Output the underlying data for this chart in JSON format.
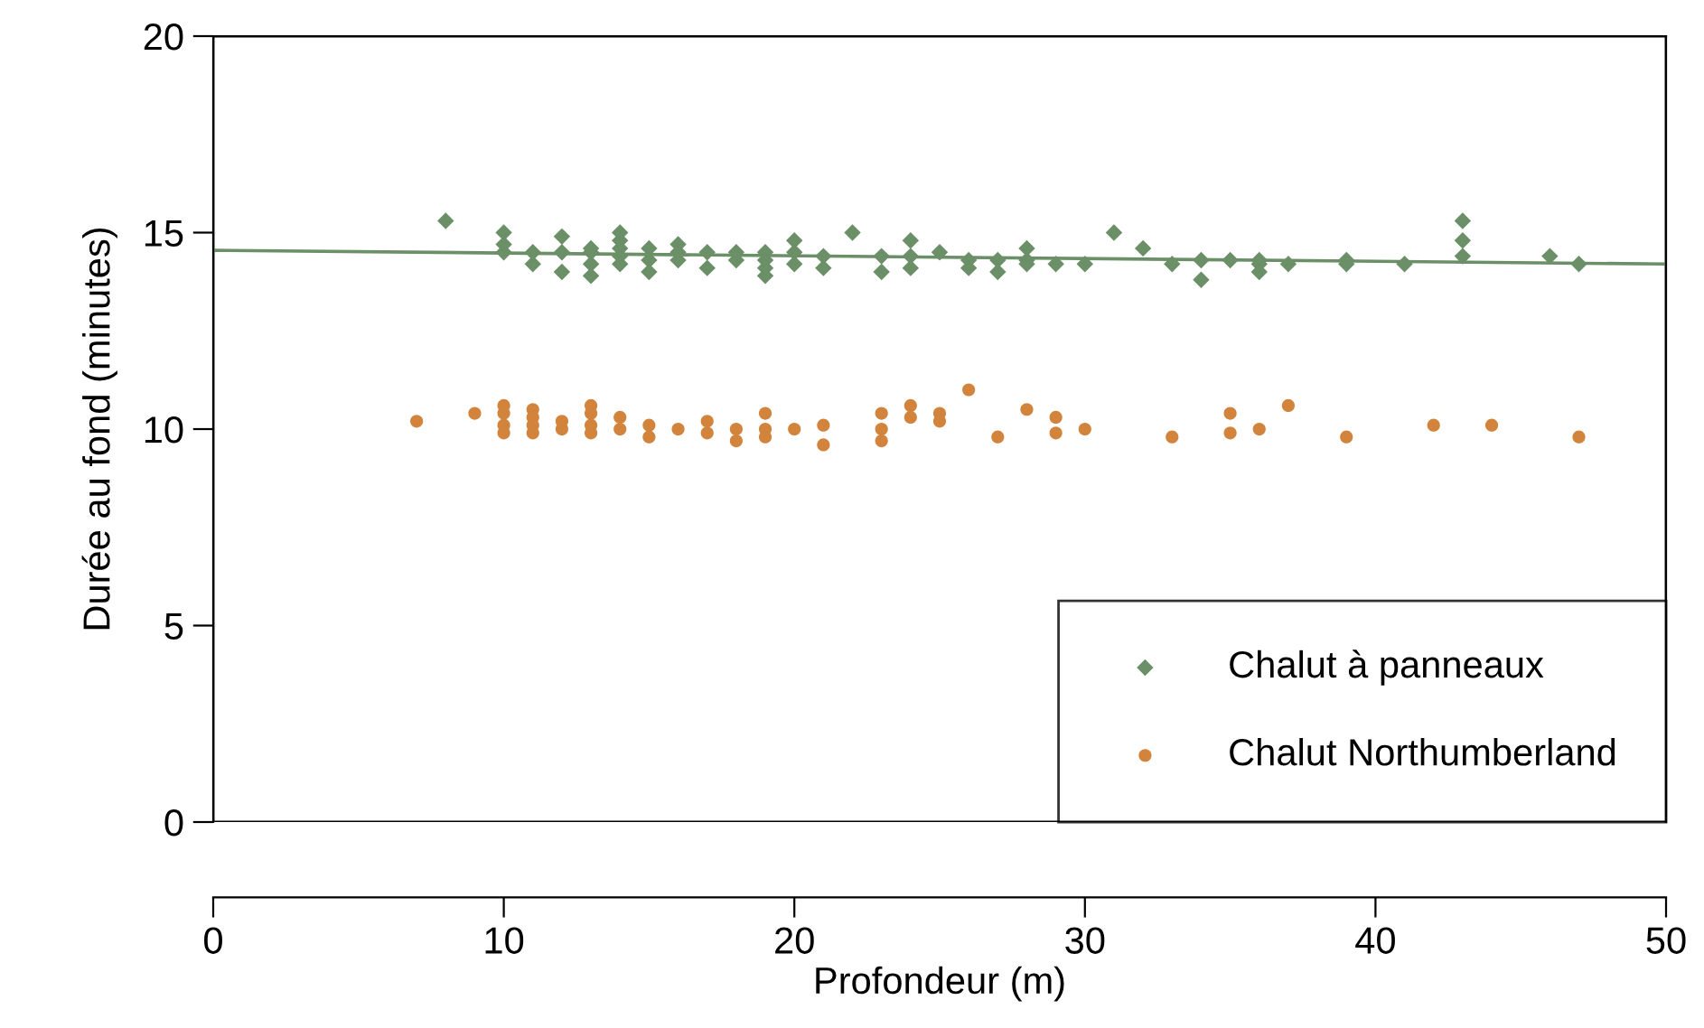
{
  "chart_data": {
    "type": "scatter",
    "xlabel": "Profondeur (m)",
    "ylabel": "Durée au fond (minutes)",
    "xlim": [
      0,
      50
    ],
    "xticks": [
      0,
      10,
      20,
      30,
      40,
      50
    ],
    "ylim": [
      0,
      20
    ],
    "yticks": [
      0,
      5,
      10,
      15,
      20
    ],
    "grid": false,
    "legend": "bottom right",
    "series": [
      {
        "name": "Chalut à panneaux",
        "color": "#6b8f67",
        "marker": "diamond",
        "x": [
          8,
          10,
          10,
          10,
          11,
          11,
          12,
          12,
          12,
          13,
          13,
          13,
          13,
          14,
          14,
          14,
          14,
          14,
          15,
          15,
          15,
          16,
          16,
          16,
          17,
          17,
          18,
          18,
          19,
          19,
          19,
          19,
          20,
          20,
          20,
          21,
          21,
          22,
          23,
          23,
          24,
          24,
          24,
          25,
          26,
          26,
          27,
          27,
          28,
          28,
          28,
          29,
          30,
          31,
          32,
          33,
          34,
          34,
          35,
          36,
          36,
          36,
          37,
          39,
          39,
          41,
          43,
          43,
          43,
          46,
          47
        ],
        "values": [
          15.3,
          15.0,
          14.7,
          14.5,
          14.5,
          14.2,
          14.9,
          14.5,
          14.0,
          14.6,
          14.5,
          14.2,
          13.9,
          15.0,
          14.8,
          14.6,
          14.4,
          14.2,
          14.6,
          14.3,
          14.0,
          14.7,
          14.5,
          14.3,
          14.5,
          14.1,
          14.5,
          14.3,
          14.5,
          14.3,
          14.1,
          13.9,
          14.8,
          14.5,
          14.2,
          14.4,
          14.1,
          15.0,
          14.4,
          14.0,
          14.8,
          14.4,
          14.1,
          14.5,
          14.3,
          14.1,
          14.3,
          14.0,
          14.6,
          14.3,
          14.2,
          14.2,
          14.2,
          15.0,
          14.6,
          14.2,
          14.3,
          13.8,
          14.3,
          14.3,
          14.2,
          14.0,
          14.2,
          14.3,
          14.2,
          14.2,
          15.3,
          14.8,
          14.4,
          14.4,
          14.2
        ]
      },
      {
        "name": "Chalut Northumberland",
        "color": "#d2843c",
        "marker": "circle",
        "x": [
          7,
          9,
          10,
          10,
          10,
          10,
          11,
          11,
          11,
          11,
          12,
          12,
          13,
          13,
          13,
          13,
          14,
          14,
          15,
          15,
          16,
          17,
          17,
          18,
          18,
          19,
          19,
          19,
          20,
          21,
          21,
          23,
          23,
          23,
          24,
          24,
          25,
          25,
          26,
          27,
          28,
          29,
          29,
          30,
          33,
          35,
          35,
          36,
          37,
          39,
          42,
          44,
          47
        ],
        "values": [
          10.2,
          10.4,
          10.6,
          10.4,
          10.1,
          9.9,
          10.5,
          10.3,
          10.1,
          9.9,
          10.2,
          10.0,
          10.6,
          10.4,
          10.1,
          9.9,
          10.3,
          10.0,
          10.1,
          9.8,
          10.0,
          10.2,
          9.9,
          10.0,
          9.7,
          10.4,
          10.0,
          9.8,
          10.0,
          10.1,
          9.6,
          10.4,
          10.0,
          9.7,
          10.6,
          10.3,
          10.4,
          10.2,
          11.0,
          9.8,
          10.5,
          10.3,
          9.9,
          10.0,
          9.8,
          10.4,
          9.9,
          10.0,
          10.6,
          9.8,
          10.1,
          10.1,
          9.8
        ]
      },
      {
        "type": "line",
        "color": "#6b8f67",
        "x": [
          0,
          50
        ],
        "values": [
          14.55,
          14.2
        ]
      }
    ]
  }
}
